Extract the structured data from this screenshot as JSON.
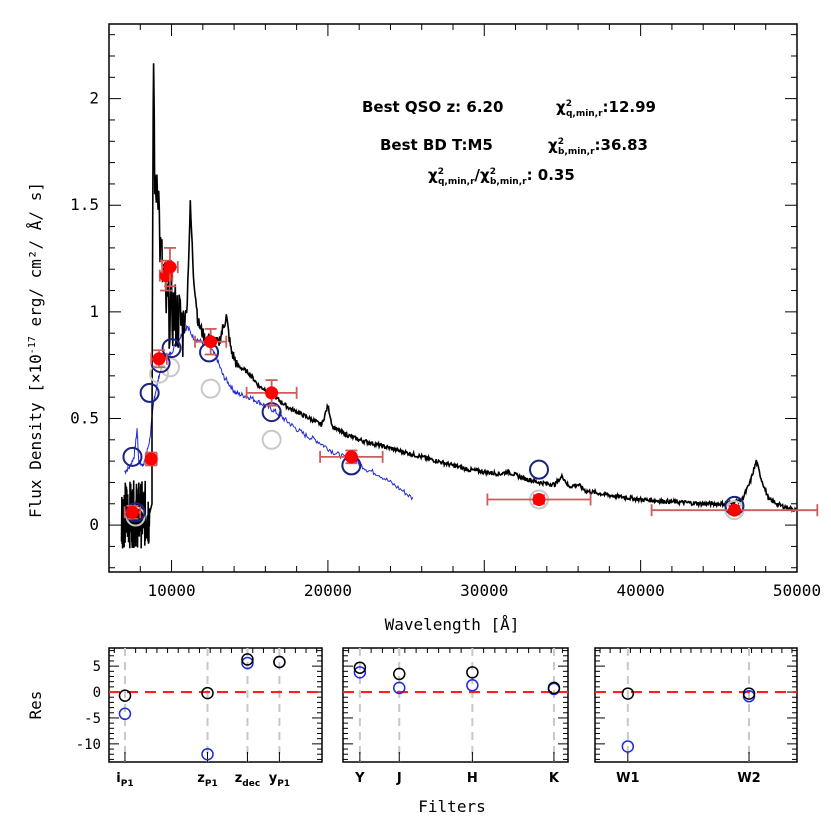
{
  "colors": {
    "qso_spectrum": "#000000",
    "bd_spectrum": "#1f2bd8",
    "observed_points": "#ff0000",
    "error_bars": "#cd5c5c",
    "qso_model_circles": "#1a237e",
    "bd_model_circles": "#c8c8c8",
    "zero_line": "#ff2020",
    "filter_lines": "#c8c8c8"
  },
  "chart_data": [
    {
      "type": "line",
      "xlabel": "Wavelength [Å]",
      "ylabel": "Flux Density [×10",
      "ylabel_exp": "-17",
      "ylabel_rest": " erg/ cm²/ Å/ s]",
      "xlim": [
        6000,
        50000
      ],
      "ylim": [
        -0.22,
        2.35
      ],
      "xticks": [
        10000,
        20000,
        30000,
        40000,
        50000
      ],
      "yticks": [
        0,
        0.5,
        1,
        1.5,
        2
      ],
      "annotations": {
        "best_qso": "Best QSO z: 6.20",
        "chi_q_symbol": "χ",
        "chi_q_sub": "q,min,r",
        "chi_q_value": ":12.99",
        "best_bd": "Best BD T:M5",
        "chi_b_symbol": "χ",
        "chi_b_sub": "b,min,r",
        "chi_b_value": ":36.83",
        "ratio_sub_q": "q,min,r",
        "ratio_sub_b": "b,min,r",
        "ratio_value": ":  0.35",
        "sq": "2"
      },
      "observed_points": [
        {
          "x": 7500,
          "y": 0.06,
          "xerr": 500,
          "yerr": 0.03
        },
        {
          "x": 8700,
          "y": 0.31,
          "xerr": 350,
          "yerr": 0.03
        },
        {
          "x": 9200,
          "y": 0.78,
          "xerr": 500,
          "yerr": 0.04
        },
        {
          "x": 9650,
          "y": 1.17,
          "xerr": 400,
          "yerr": 0.07
        },
        {
          "x": 9900,
          "y": 1.21,
          "xerr": 500,
          "yerr": 0.09
        },
        {
          "x": 12500,
          "y": 0.86,
          "xerr": 1000,
          "yerr": 0.06
        },
        {
          "x": 16400,
          "y": 0.62,
          "xerr": 1600,
          "yerr": 0.06
        },
        {
          "x": 21500,
          "y": 0.32,
          "xerr": 2000,
          "yerr": 0.03
        },
        {
          "x": 33500,
          "y": 0.12,
          "xerr": 3300,
          "yerr": 0.02
        },
        {
          "x": 46000,
          "y": 0.07,
          "xerr": 5300,
          "yerr": 0.02
        }
      ],
      "qso_model_points": [
        {
          "x": 7500,
          "y": 0.32
        },
        {
          "x": 7700,
          "y": 0.06
        },
        {
          "x": 8600,
          "y": 0.62
        },
        {
          "x": 9300,
          "y": 0.76
        },
        {
          "x": 10000,
          "y": 0.83
        },
        {
          "x": 12400,
          "y": 0.81
        },
        {
          "x": 16400,
          "y": 0.53
        },
        {
          "x": 21500,
          "y": 0.28
        },
        {
          "x": 33500,
          "y": 0.26
        },
        {
          "x": 46000,
          "y": 0.09
        }
      ],
      "bd_model_points": [
        {
          "x": 7700,
          "y": 0.04
        },
        {
          "x": 9200,
          "y": 0.71
        },
        {
          "x": 9900,
          "y": 0.74
        },
        {
          "x": 12500,
          "y": 0.64
        },
        {
          "x": 16400,
          "y": 0.4
        },
        {
          "x": 21500,
          "y": 0.28
        },
        {
          "x": 33500,
          "y": 0.12
        },
        {
          "x": 46000,
          "y": 0.07
        }
      ],
      "qso_spectrum_envelope": [
        [
          8750,
          0.6
        ],
        [
          8850,
          2.2
        ],
        [
          8950,
          1.5
        ],
        [
          9100,
          1.7
        ],
        [
          9300,
          1.25
        ],
        [
          9500,
          1.15
        ],
        [
          9700,
          1.0
        ],
        [
          10000,
          1.0
        ],
        [
          10400,
          0.97
        ],
        [
          10800,
          0.92
        ],
        [
          11000,
          1.05
        ],
        [
          11200,
          1.5
        ],
        [
          11400,
          1.18
        ],
        [
          11700,
          0.95
        ],
        [
          12100,
          0.88
        ],
        [
          12500,
          0.87
        ],
        [
          13000,
          0.85
        ],
        [
          13500,
          0.98
        ],
        [
          13800,
          0.82
        ],
        [
          14200,
          0.75
        ],
        [
          15000,
          0.71
        ],
        [
          15600,
          0.65
        ],
        [
          16200,
          0.63
        ],
        [
          16800,
          0.59
        ],
        [
          17500,
          0.55
        ],
        [
          18300,
          0.52
        ],
        [
          19100,
          0.49
        ],
        [
          19600,
          0.47
        ],
        [
          20000,
          0.56
        ],
        [
          20300,
          0.46
        ],
        [
          21000,
          0.43
        ],
        [
          22000,
          0.4
        ],
        [
          23000,
          0.38
        ],
        [
          24000,
          0.36
        ],
        [
          25000,
          0.34
        ],
        [
          26000,
          0.32
        ],
        [
          27000,
          0.3
        ],
        [
          28000,
          0.28
        ],
        [
          29000,
          0.26
        ],
        [
          30000,
          0.25
        ],
        [
          31000,
          0.24
        ],
        [
          31500,
          0.25
        ],
        [
          32500,
          0.22
        ],
        [
          33500,
          0.2
        ],
        [
          34500,
          0.19
        ],
        [
          35000,
          0.23
        ],
        [
          35400,
          0.18
        ],
        [
          36000,
          0.19
        ],
        [
          36500,
          0.16
        ],
        [
          38000,
          0.14
        ],
        [
          40000,
          0.12
        ],
        [
          42000,
          0.11
        ],
        [
          44000,
          0.1
        ],
        [
          45500,
          0.1
        ],
        [
          46500,
          0.12
        ],
        [
          47000,
          0.2
        ],
        [
          47400,
          0.3
        ],
        [
          47700,
          0.22
        ],
        [
          48200,
          0.12
        ],
        [
          49000,
          0.09
        ],
        [
          50000,
          0.07
        ]
      ],
      "bd_spectrum_envelope": [
        [
          7000,
          0.25
        ],
        [
          7300,
          0.27
        ],
        [
          7600,
          0.32
        ],
        [
          7800,
          0.45
        ],
        [
          7900,
          0.3
        ],
        [
          8100,
          0.28
        ],
        [
          8300,
          0.3
        ],
        [
          8600,
          0.4
        ],
        [
          8900,
          0.6
        ],
        [
          9200,
          0.7
        ],
        [
          9500,
          0.78
        ],
        [
          9900,
          0.8
        ],
        [
          10300,
          0.85
        ],
        [
          10700,
          0.9
        ],
        [
          11000,
          0.93
        ],
        [
          11400,
          0.88
        ],
        [
          11900,
          0.86
        ],
        [
          12400,
          0.84
        ],
        [
          12900,
          0.78
        ],
        [
          13300,
          0.7
        ],
        [
          13700,
          0.66
        ],
        [
          14100,
          0.62
        ],
        [
          14500,
          0.61
        ],
        [
          15000,
          0.6
        ],
        [
          15500,
          0.58
        ],
        [
          16000,
          0.56
        ],
        [
          16500,
          0.54
        ],
        [
          17000,
          0.51
        ],
        [
          17500,
          0.48
        ],
        [
          18000,
          0.45
        ],
        [
          18600,
          0.42
        ],
        [
          19200,
          0.4
        ],
        [
          19800,
          0.37
        ],
        [
          20400,
          0.34
        ],
        [
          21000,
          0.32
        ],
        [
          21800,
          0.3
        ],
        [
          22500,
          0.26
        ],
        [
          23200,
          0.24
        ],
        [
          24000,
          0.2
        ],
        [
          24800,
          0.16
        ],
        [
          25500,
          0.12
        ]
      ],
      "lyman_noise_region": [
        6800,
        8600
      ]
    },
    {
      "type": "scatter",
      "panel": "residual-left",
      "ylabel": "Res",
      "ylim": [
        -13.5,
        8.5
      ],
      "yticks": [
        5,
        0,
        -5,
        -10
      ],
      "xlim": [
        0,
        4
      ],
      "filters": [
        {
          "pos": 0.3,
          "name": "i",
          "sub": "P1"
        },
        {
          "pos": 1.85,
          "name": "z",
          "sub": "P1"
        },
        {
          "pos": 2.6,
          "name": "z",
          "sub": "dec"
        },
        {
          "pos": 3.2,
          "name": "y",
          "sub": "P1"
        }
      ],
      "qso_residuals": [
        0.3,
        -0.7,
        1.85,
        -0.2,
        2.6,
        6.3,
        3.2,
        5.8
      ],
      "bd_residuals": [
        0.3,
        -4.2,
        1.85,
        -12.0,
        2.6,
        5.6,
        3.2,
        5.8
      ]
    },
    {
      "type": "scatter",
      "panel": "residual-middle",
      "ylim": [
        -13.5,
        8.5
      ],
      "xlim": [
        0,
        4
      ],
      "filters": [
        {
          "pos": 0.3,
          "name": "Y",
          "sub": ""
        },
        {
          "pos": 1.0,
          "name": "J",
          "sub": ""
        },
        {
          "pos": 2.3,
          "name": "H",
          "sub": ""
        },
        {
          "pos": 3.75,
          "name": "K",
          "sub": ""
        }
      ],
      "qso_residuals": [
        0.3,
        4.7,
        1.0,
        3.5,
        2.3,
        3.8,
        3.75,
        0.8
      ],
      "bd_residuals": [
        0.3,
        3.8,
        1.0,
        0.8,
        2.3,
        1.3,
        3.75,
        0.6
      ]
    },
    {
      "type": "scatter",
      "panel": "residual-right",
      "xlabel": "Filters",
      "ylim": [
        -13.5,
        8.5
      ],
      "xlim": [
        0,
        4
      ],
      "filters": [
        {
          "pos": 0.65,
          "name": "W1",
          "sub": ""
        },
        {
          "pos": 3.05,
          "name": "W2",
          "sub": ""
        }
      ],
      "qso_residuals": [
        0.65,
        -0.3,
        3.05,
        -0.3
      ],
      "bd_residuals": [
        0.65,
        -10.5,
        3.05,
        -0.8
      ]
    }
  ]
}
